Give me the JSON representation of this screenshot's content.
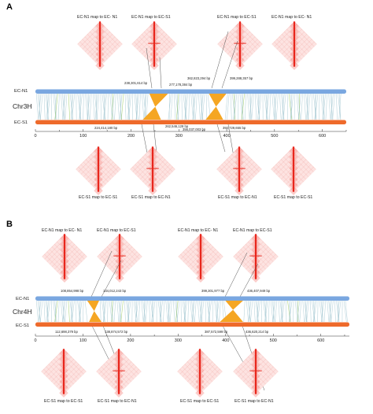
{
  "colors": {
    "top_track": "#7aa7e0",
    "bottom_track": "#ee6a2b",
    "inversion": "#f5a623",
    "heatmap": "#e8261c",
    "synteny_line": "#9fc4cf",
    "synteny_line_green": "#8bc34a"
  },
  "panels": [
    {
      "label": "A",
      "chromosome": "Chr3H",
      "top_track_label": "EC-N1",
      "bottom_track_label": "EC-S1",
      "axis_ticks": [
        "0",
        "100",
        "200",
        "300",
        "400",
        "500",
        "600"
      ],
      "top_maps": [
        {
          "title": "EC-N1 map to EC- N1"
        },
        {
          "title": "EC-N1 map to EC-S1"
        },
        {
          "title": "EC-N1 map to EC-S1"
        },
        {
          "title": "EC-N1 map to EC- N1"
        }
      ],
      "bottom_maps": [
        {
          "title": "EC-S1 map to EC-S1"
        },
        {
          "title": "EC-S1 map to EC-N1"
        },
        {
          "title": "EC-S1 map to EC-N1"
        },
        {
          "title": "EC-S1 map to EC-S1"
        }
      ],
      "top_breakpoints": [
        "238,301,614 bp",
        "277,178,384 bp",
        "362,823,294 bp",
        "399,288,357 bp"
      ],
      "bottom_breakpoints": [
        "224,414,180 bp",
        "262,546,128 bp",
        "356,037,003 bp",
        "392,729,655 bp"
      ],
      "inversions": [
        {
          "top": [
            238.3,
            277.2
          ],
          "bottom": [
            224.4,
            262.5
          ]
        },
        {
          "top": [
            362.8,
            399.3
          ],
          "bottom": [
            356.0,
            392.7
          ]
        }
      ]
    },
    {
      "label": "B",
      "chromosome": "Chr4H",
      "top_track_label": "EC-N1",
      "bottom_track_label": "EC-S1",
      "axis_ticks": [
        "0",
        "100",
        "200",
        "300",
        "400",
        "500",
        "600"
      ],
      "top_maps": [
        {
          "title": "EC-N1 map to EC- N1"
        },
        {
          "title": "EC-N1 map to EC-S1"
        },
        {
          "title": "EC-N1 map to EC- N1"
        },
        {
          "title": "EC-N1 map to EC-S1"
        }
      ],
      "bottom_maps": [
        {
          "title": "EC-S1 map to EC-S1"
        },
        {
          "title": "EC-S1 map to EC-N1"
        },
        {
          "title": "EC-S1 map to EC-S1"
        },
        {
          "title": "EC-S1 map to EC-N1"
        }
      ],
      "top_breakpoints": [
        "108,854,998 bp",
        "134,012,243 bp",
        "399,301,977 bp",
        "436,407,949 bp"
      ],
      "bottom_breakpoints": [
        "112,698,379 bp",
        "138,874,572 bp",
        "387,572,599 bp",
        "436,620,214 bp"
      ],
      "inversions": [
        {
          "top": [
            108.9,
            134.0
          ],
          "bottom": [
            112.7,
            138.9
          ]
        },
        {
          "top": [
            399.3,
            436.4
          ],
          "bottom": [
            387.6,
            436.6
          ]
        }
      ]
    }
  ]
}
